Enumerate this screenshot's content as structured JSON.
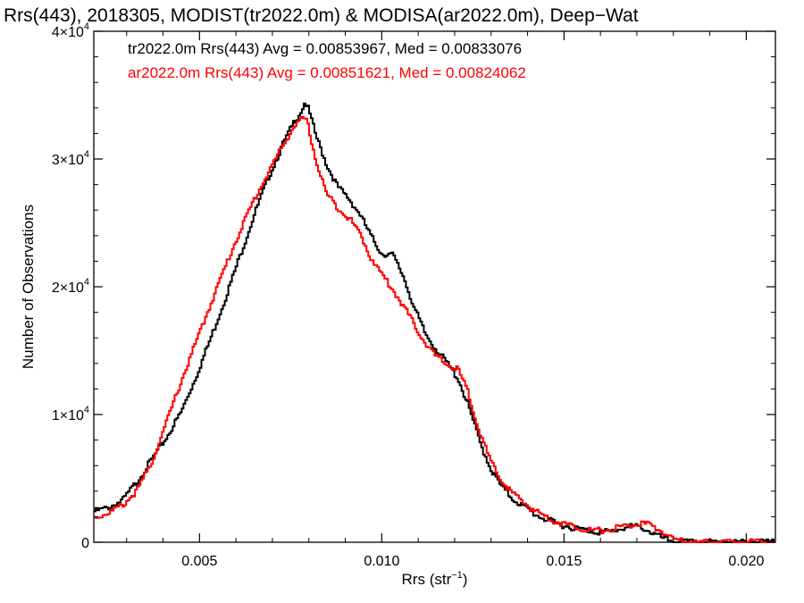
{
  "chart_data": {
    "type": "line",
    "title": "Rrs(443), 2018305, MODIST(tr2022.0m) & MODISA(ar2022.0m), Deep−Wat",
    "xlabel_main": "Rrs (str",
    "xlabel_sup": "−1",
    "xlabel_end": ")",
    "ylabel": "Number of Observations",
    "xlim": [
      0.0021,
      0.0208
    ],
    "ylim": [
      0,
      40000
    ],
    "x_ticks": [
      {
        "value": 0.005,
        "label": "0.005"
      },
      {
        "value": 0.01,
        "label": "0.010"
      },
      {
        "value": 0.015,
        "label": "0.015"
      },
      {
        "value": 0.02,
        "label": "0.020"
      }
    ],
    "y_ticks": [
      {
        "value": 0,
        "mant": "0",
        "exp": ""
      },
      {
        "value": 10000,
        "mant": "1×10",
        "exp": "4"
      },
      {
        "value": 20000,
        "mant": "2×10",
        "exp": "4"
      },
      {
        "value": 30000,
        "mant": "3×10",
        "exp": "4"
      },
      {
        "value": 40000,
        "mant": "4×10",
        "exp": "4"
      }
    ],
    "grid": false,
    "series": [
      {
        "name": "tr2022.0m Rrs(443)",
        "legend": "tr2022.0m Rrs(443) Avg = 0.00853967, Med = 0.00833076",
        "color": "#000000",
        "x": [
          0.0021,
          0.0025,
          0.0029,
          0.0033,
          0.0037,
          0.0041,
          0.0045,
          0.0049,
          0.0053,
          0.0057,
          0.0061,
          0.0065,
          0.0069,
          0.0073,
          0.0076,
          0.0078,
          0.0079,
          0.008,
          0.0082,
          0.0085,
          0.0088,
          0.0091,
          0.0094,
          0.0097,
          0.01,
          0.0103,
          0.0106,
          0.0109,
          0.0112,
          0.0115,
          0.0118,
          0.0121,
          0.0124,
          0.0127,
          0.013,
          0.0133,
          0.0136,
          0.0139,
          0.0142,
          0.0145,
          0.0148,
          0.0151,
          0.0154,
          0.0157,
          0.016,
          0.0163,
          0.0166,
          0.0169,
          0.0172,
          0.0175,
          0.0178,
          0.0181,
          0.0184,
          0.019,
          0.02,
          0.0208
        ],
        "values": [
          2400,
          2700,
          3300,
          4800,
          6500,
          8200,
          10200,
          12900,
          15900,
          19000,
          22300,
          25600,
          28600,
          31200,
          32900,
          33800,
          34500,
          33800,
          31800,
          29500,
          27800,
          26900,
          25700,
          24000,
          22600,
          22500,
          20800,
          18300,
          16300,
          15100,
          14000,
          12800,
          10500,
          7800,
          5700,
          4300,
          3400,
          2800,
          2200,
          1800,
          1450,
          1250,
          1050,
          900,
          800,
          850,
          1100,
          1250,
          1100,
          600,
          200,
          50,
          0,
          0,
          0,
          0
        ]
      },
      {
        "name": "ar2022.0m Rrs(443)",
        "legend": "ar2022.0m Rrs(443) Avg = 0.00851621, Med = 0.00824062",
        "color": "#ff0000",
        "x": [
          0.0021,
          0.0025,
          0.0029,
          0.0033,
          0.0037,
          0.0041,
          0.0045,
          0.0049,
          0.0053,
          0.0057,
          0.0061,
          0.0065,
          0.0069,
          0.0073,
          0.0076,
          0.0078,
          0.0079,
          0.008,
          0.0082,
          0.0085,
          0.0088,
          0.0091,
          0.0094,
          0.0097,
          0.01,
          0.0103,
          0.0106,
          0.0109,
          0.0112,
          0.0115,
          0.0118,
          0.0121,
          0.0124,
          0.0127,
          0.013,
          0.0133,
          0.0136,
          0.0139,
          0.0142,
          0.0145,
          0.0148,
          0.0151,
          0.0154,
          0.0157,
          0.016,
          0.0163,
          0.0166,
          0.0169,
          0.0172,
          0.0175,
          0.0178,
          0.0181,
          0.0184,
          0.019,
          0.02,
          0.0208
        ],
        "values": [
          1900,
          2300,
          2900,
          4100,
          6300,
          9400,
          12600,
          15600,
          18600,
          21500,
          24300,
          26800,
          29000,
          31100,
          32600,
          33000,
          33200,
          32400,
          29800,
          27200,
          26200,
          25400,
          24200,
          22300,
          21000,
          19800,
          18500,
          17000,
          15600,
          14500,
          13900,
          13500,
          11500,
          8500,
          6200,
          4800,
          3800,
          3100,
          2500,
          2000,
          1600,
          1350,
          1150,
          950,
          900,
          1000,
          1250,
          1350,
          1450,
          1200,
          600,
          150,
          0,
          0,
          0,
          0
        ]
      }
    ]
  }
}
